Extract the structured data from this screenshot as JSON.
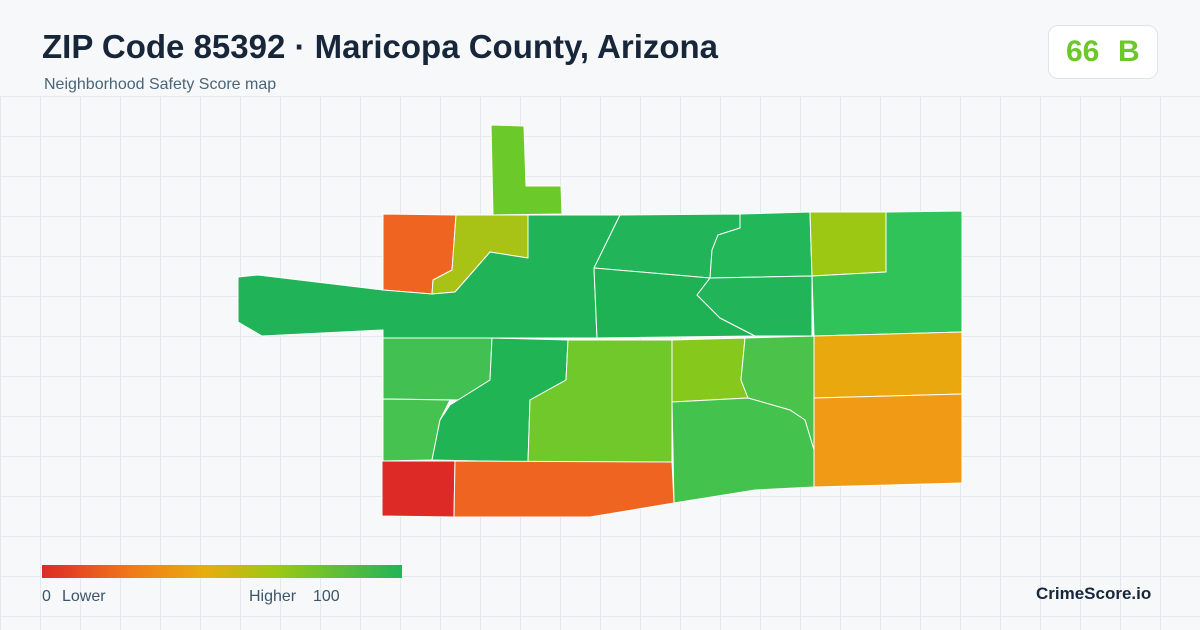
{
  "header": {
    "title": "ZIP Code 85392 · Maricopa County, Arizona",
    "subtitle": "Neighborhood Safety Score map"
  },
  "score": {
    "value": 66,
    "grade": "B"
  },
  "legend": {
    "min": 0,
    "min_label": "Lower",
    "max_label": "Higher",
    "max": 100
  },
  "brand": "CrimeScore.io"
}
